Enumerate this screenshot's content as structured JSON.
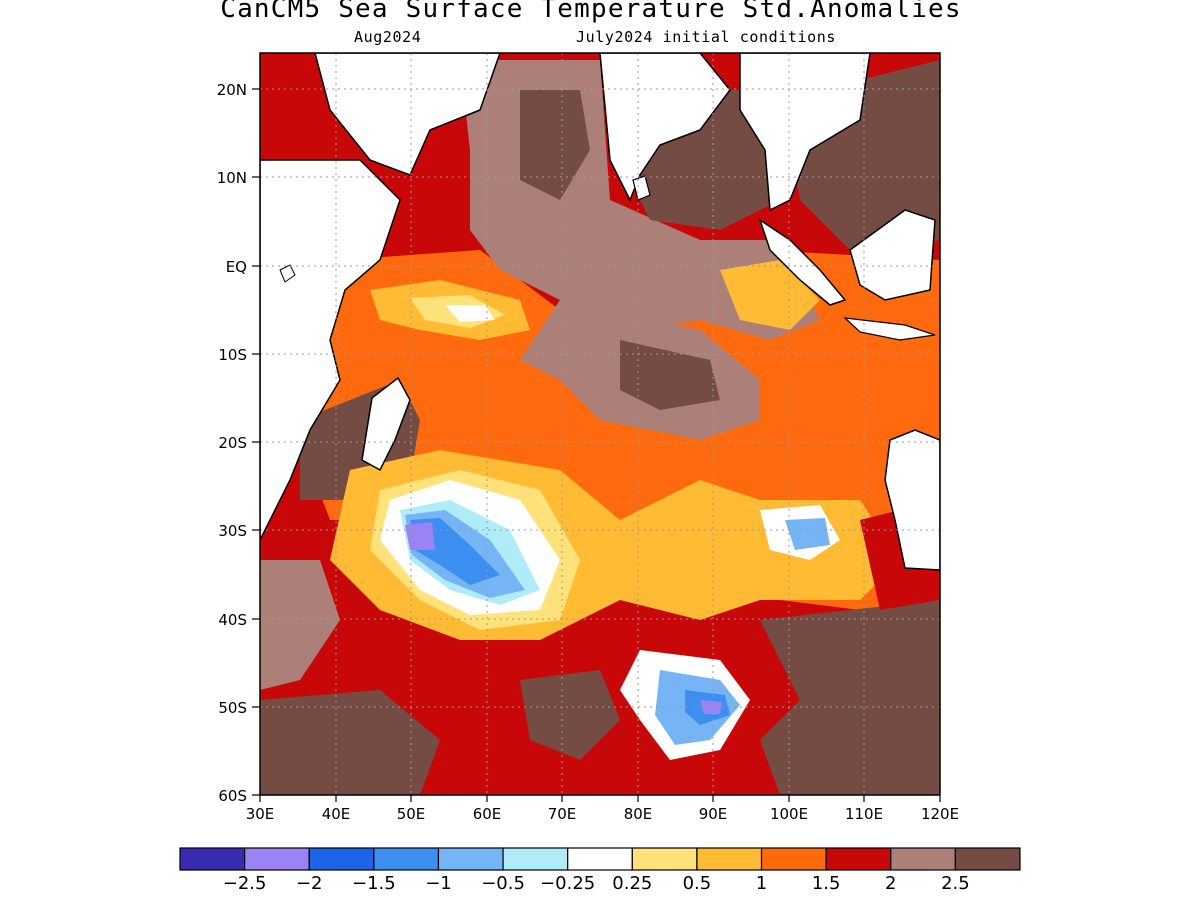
{
  "header": {
    "title": "CanCM5 Sea Surface Temperature Std.Anomalies",
    "valid_month": "Aug2024",
    "initial_conditions": "July2024 initial conditions"
  },
  "axes": {
    "lat_labels": [
      "20N",
      "10N",
      "EQ",
      "10S",
      "20S",
      "30S",
      "40S",
      "50S",
      "60S"
    ],
    "lat_values": [
      20,
      10,
      0,
      -10,
      -20,
      -30,
      -40,
      -50,
      -60
    ],
    "lon_labels": [
      "30E",
      "40E",
      "50E",
      "60E",
      "70E",
      "80E",
      "90E",
      "100E",
      "110E",
      "120E"
    ],
    "lon_values": [
      30,
      40,
      50,
      60,
      70,
      80,
      90,
      100,
      110,
      120
    ],
    "lat_range": [
      -60,
      24
    ],
    "lon_range": [
      30,
      120
    ],
    "grid": "dotted"
  },
  "colorbar": {
    "colors": [
      "#3a2bb3",
      "#9b82f5",
      "#1e64e8",
      "#3c8ff0",
      "#75b4f5",
      "#b0ecf8",
      "#ffffff",
      "#ffe27a",
      "#ffbb33",
      "#ff6a0f",
      "#c80808",
      "#ac8078",
      "#744c44"
    ],
    "labels": [
      "−2.5",
      "−2",
      "−1.5",
      "−1",
      "−0.5",
      "−0.25",
      "0.25",
      "0.5",
      "1",
      "1.5",
      "2",
      "2.5"
    ]
  },
  "palette": {
    "land": "#ffffff",
    "coast": "#000000"
  }
}
